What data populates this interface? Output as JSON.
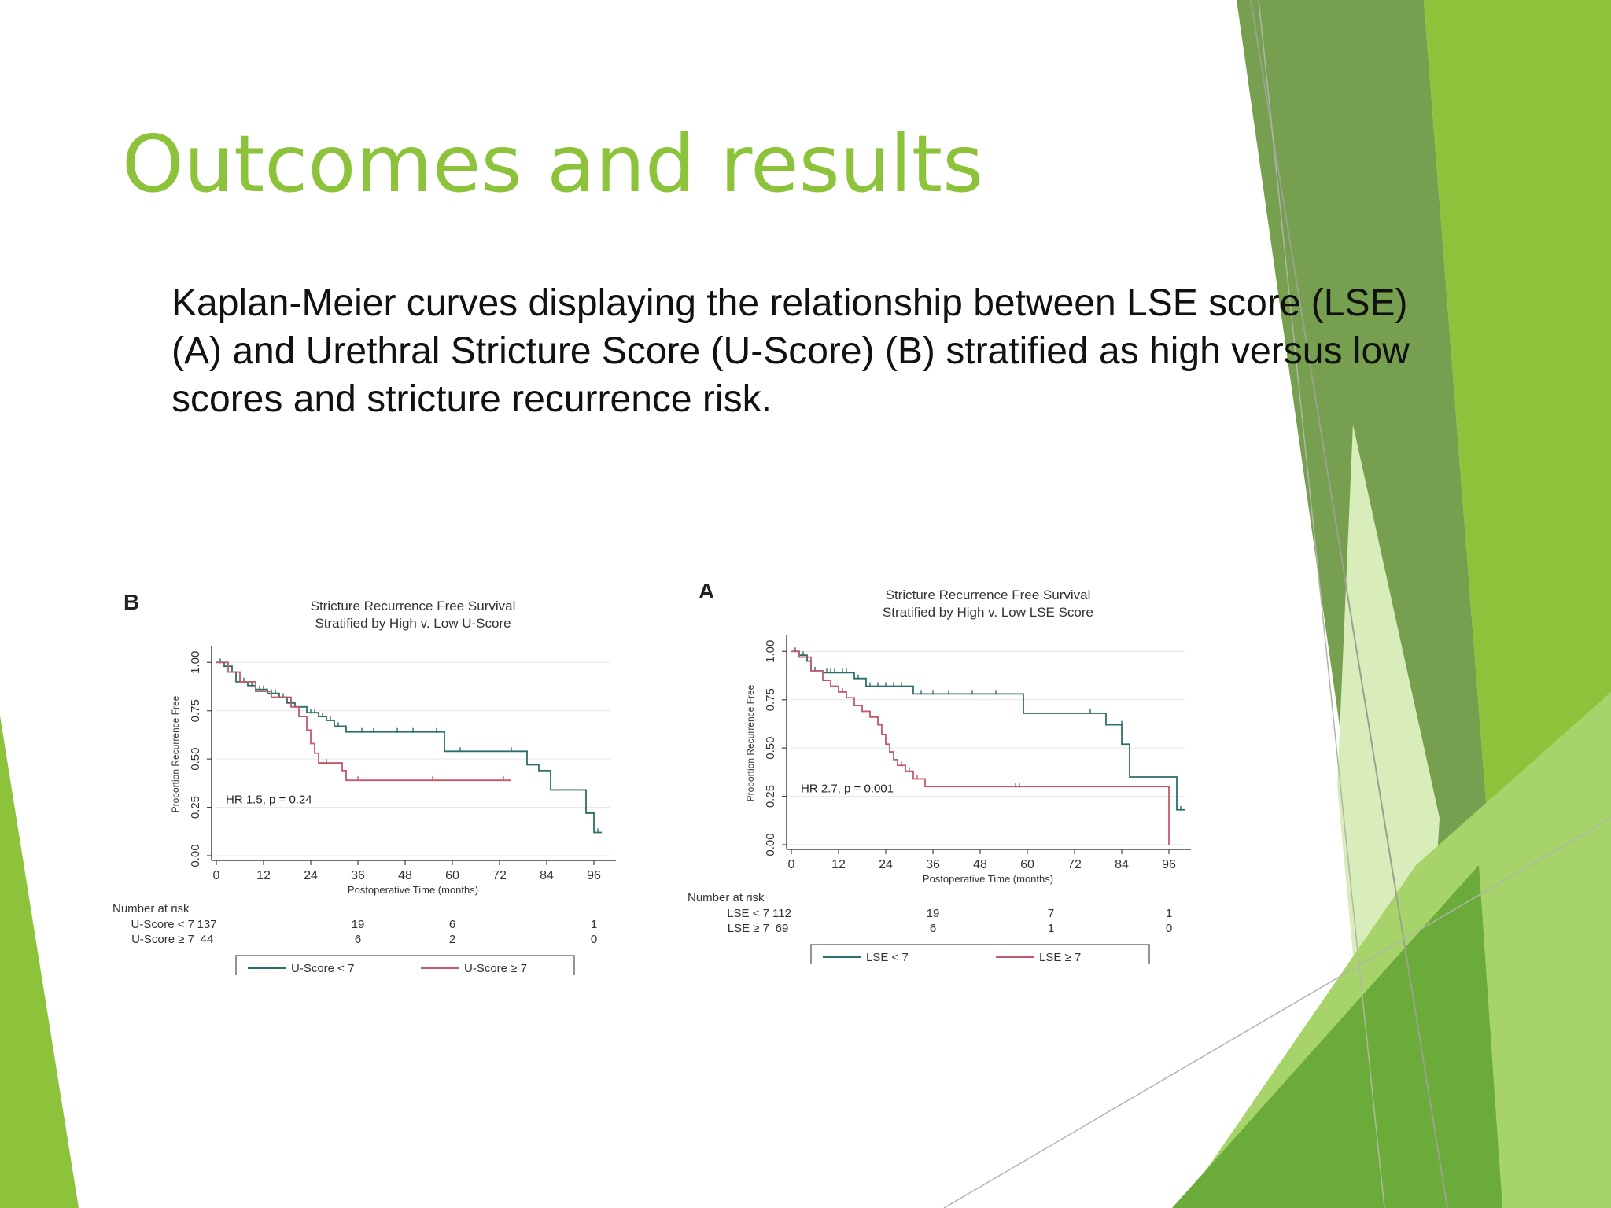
{
  "slide": {
    "title": "Outcomes and results",
    "body": "Kaplan-Meier curves displaying the relationship between LSE score (LSE) (A) and Urethral Stricture Score (U-Score) (B) stratified as high versus low scores and stricture recurrence risk."
  },
  "colors": {
    "title": "#8dc33b",
    "deco_greens": [
      "#76a04f",
      "#8dc33b",
      "#6aab3a",
      "#a6d46a",
      "#d9edbb"
    ],
    "series_low": "#2c6e6a",
    "series_high": "#c25a6a"
  },
  "chart_data": [
    {
      "panel_letter": "B",
      "type": "line",
      "title": "Stricture Recurrence Free Survival",
      "subtitle": "Stratified by High v. Low U-Score",
      "xlabel": "Postoperative Time (months)",
      "ylabel": "Proportion Recurrence Free",
      "xlim": [
        0,
        100
      ],
      "ylim": [
        0,
        1.05
      ],
      "xticks": [
        0,
        12,
        24,
        36,
        48,
        60,
        72,
        84,
        96
      ],
      "yticks": [
        "0.00",
        "0.25",
        "0.50",
        "0.75",
        "1.00"
      ],
      "annotation": "HR 1.5, p = 0.24",
      "series": [
        {
          "name": "U-Score < 7",
          "color": "#2c6e6a",
          "steps": [
            [
              0,
              1.0
            ],
            [
              2,
              0.98
            ],
            [
              4,
              0.95
            ],
            [
              5,
              0.9
            ],
            [
              8,
              0.88
            ],
            [
              10,
              0.86
            ],
            [
              13,
              0.84
            ],
            [
              16,
              0.82
            ],
            [
              18,
              0.79
            ],
            [
              20,
              0.77
            ],
            [
              23,
              0.74
            ],
            [
              26,
              0.72
            ],
            [
              28,
              0.7
            ],
            [
              30,
              0.67
            ],
            [
              33,
              0.64
            ],
            [
              58,
              0.54
            ],
            [
              79,
              0.47
            ],
            [
              82,
              0.44
            ],
            [
              85,
              0.34
            ],
            [
              94,
              0.22
            ],
            [
              96,
              0.12
            ],
            [
              98,
              0.12
            ]
          ],
          "censors": [
            [
              1,
              1.0
            ],
            [
              3,
              0.98
            ],
            [
              6,
              0.9
            ],
            [
              7,
              0.9
            ],
            [
              9,
              0.88
            ],
            [
              11,
              0.86
            ],
            [
              12,
              0.86
            ],
            [
              14,
              0.84
            ],
            [
              15,
              0.84
            ],
            [
              17,
              0.82
            ],
            [
              19,
              0.79
            ],
            [
              24,
              0.74
            ],
            [
              25,
              0.74
            ],
            [
              27,
              0.72
            ],
            [
              29,
              0.7
            ],
            [
              31,
              0.67
            ],
            [
              37,
              0.64
            ],
            [
              40,
              0.64
            ],
            [
              46,
              0.64
            ],
            [
              50,
              0.64
            ],
            [
              56,
              0.64
            ],
            [
              62,
              0.54
            ],
            [
              75,
              0.54
            ],
            [
              97,
              0.12
            ]
          ]
        },
        {
          "name": "U-Score ≥ 7",
          "color": "#c25a6a",
          "steps": [
            [
              0,
              1.0
            ],
            [
              3,
              0.95
            ],
            [
              6,
              0.9
            ],
            [
              10,
              0.85
            ],
            [
              14,
              0.82
            ],
            [
              19,
              0.77
            ],
            [
              21,
              0.72
            ],
            [
              23,
              0.65
            ],
            [
              24,
              0.58
            ],
            [
              25,
              0.53
            ],
            [
              26,
              0.48
            ],
            [
              32,
              0.44
            ],
            [
              33,
              0.39
            ],
            [
              75,
              0.39
            ]
          ],
          "censors": [
            [
              28,
              0.48
            ],
            [
              36,
              0.39
            ],
            [
              55,
              0.39
            ],
            [
              73,
              0.39
            ]
          ]
        }
      ],
      "risk_table": {
        "header": "Number at risk",
        "times": [
          0,
          36,
          60,
          96
        ],
        "rows": [
          {
            "label": "U-Score < 7",
            "values": [
              "137",
              "19",
              "6",
              "1"
            ]
          },
          {
            "label": "U-Score ≥ 7",
            "values": [
              "44",
              "6",
              "2",
              "0"
            ]
          }
        ]
      },
      "legend": {
        "placement": "bottom",
        "entries": [
          "U-Score < 7",
          "U-Score ≥ 7"
        ]
      }
    },
    {
      "panel_letter": "A",
      "type": "line",
      "title": "Stricture Recurrence Free Survival",
      "subtitle": "Stratified by High v. Low LSE Score",
      "xlabel": "Postoperative Time (months)",
      "ylabel": "Proportion Recurrence Free",
      "xlim": [
        0,
        100
      ],
      "ylim": [
        0,
        1.05
      ],
      "xticks": [
        0,
        12,
        24,
        36,
        48,
        60,
        72,
        84,
        96
      ],
      "yticks": [
        "0.00",
        "0.25",
        "0.50",
        "0.75",
        "1.00"
      ],
      "annotation": "HR 2.7, p = 0.001",
      "series": [
        {
          "name": "LSE < 7",
          "color": "#2c6e6a",
          "steps": [
            [
              0,
              1.0
            ],
            [
              2,
              0.98
            ],
            [
              4,
              0.95
            ],
            [
              5,
              0.9
            ],
            [
              8,
              0.89
            ],
            [
              16,
              0.86
            ],
            [
              19,
              0.82
            ],
            [
              31,
              0.78
            ],
            [
              59,
              0.68
            ],
            [
              80,
              0.62
            ],
            [
              84,
              0.52
            ],
            [
              86,
              0.35
            ],
            [
              98,
              0.18
            ],
            [
              100,
              0.18
            ]
          ],
          "censors": [
            [
              1,
              1.0
            ],
            [
              3,
              0.98
            ],
            [
              6,
              0.9
            ],
            [
              9,
              0.89
            ],
            [
              10,
              0.89
            ],
            [
              11,
              0.89
            ],
            [
              13,
              0.89
            ],
            [
              14,
              0.89
            ],
            [
              17,
              0.86
            ],
            [
              20,
              0.82
            ],
            [
              22,
              0.82
            ],
            [
              24,
              0.82
            ],
            [
              26,
              0.82
            ],
            [
              28,
              0.82
            ],
            [
              33,
              0.78
            ],
            [
              36,
              0.78
            ],
            [
              40,
              0.78
            ],
            [
              46,
              0.78
            ],
            [
              52,
              0.78
            ],
            [
              76,
              0.68
            ],
            [
              84,
              0.62
            ],
            [
              99,
              0.18
            ]
          ]
        },
        {
          "name": "LSE ≥ 7",
          "color": "#c25a6a",
          "steps": [
            [
              0,
              1.0
            ],
            [
              2,
              0.97
            ],
            [
              5,
              0.9
            ],
            [
              8,
              0.85
            ],
            [
              10,
              0.82
            ],
            [
              12,
              0.79
            ],
            [
              14,
              0.76
            ],
            [
              16,
              0.72
            ],
            [
              18,
              0.69
            ],
            [
              20,
              0.66
            ],
            [
              22,
              0.62
            ],
            [
              23,
              0.57
            ],
            [
              24,
              0.52
            ],
            [
              25,
              0.48
            ],
            [
              26,
              0.44
            ],
            [
              27,
              0.41
            ],
            [
              29,
              0.38
            ],
            [
              31,
              0.34
            ],
            [
              34,
              0.3
            ],
            [
              96,
              0.3
            ],
            [
              96,
              0.0
            ]
          ],
          "censors": [
            [
              13,
              0.79
            ],
            [
              28,
              0.41
            ],
            [
              30,
              0.38
            ],
            [
              32,
              0.34
            ],
            [
              57,
              0.3
            ],
            [
              58,
              0.3
            ]
          ]
        }
      ],
      "risk_table": {
        "header": "Number at risk",
        "times": [
          0,
          36,
          66,
          96
        ],
        "rows": [
          {
            "label": "LSE < 7",
            "values": [
              "112",
              "19",
              "7",
              "1"
            ]
          },
          {
            "label": "LSE ≥ 7",
            "values": [
              "69",
              "6",
              "1",
              "0"
            ]
          }
        ]
      },
      "legend": {
        "placement": "bottom",
        "entries": [
          "LSE < 7",
          "LSE ≥ 7"
        ]
      }
    }
  ]
}
